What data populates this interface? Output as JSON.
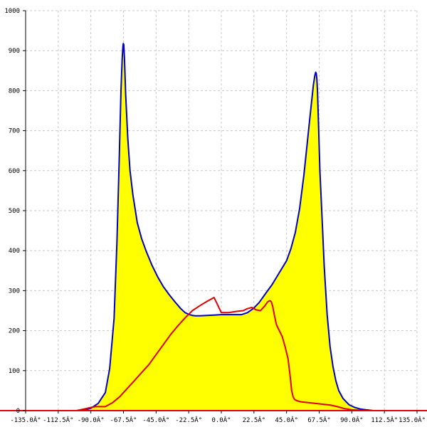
{
  "chart_data": {
    "type": "area",
    "title": "",
    "xlabel": "",
    "ylabel": "",
    "xlim": [
      -135,
      135
    ],
    "ylim": [
      0,
      1000
    ],
    "x_ticks": [
      -135,
      -112.5,
      -90,
      -67.5,
      -45,
      -22.5,
      0,
      22.5,
      45,
      67.5,
      90,
      112.5,
      135
    ],
    "x_tick_labels": [
      "-135.0Â°",
      "-112.5Â°",
      "-90.0Â°",
      "-67.5Â°",
      "-45.0Â°",
      "-22.5Â°",
      "0.0Â°",
      "22.5Â°",
      "45.0Â°",
      "67.5Â°",
      "90.0Â°",
      "112.5Â°",
      "135.0Â°"
    ],
    "y_ticks": [
      0,
      100,
      200,
      300,
      400,
      500,
      600,
      700,
      800,
      900,
      1000
    ],
    "y_tick_labels": [
      "0",
      "100",
      "200",
      "300",
      "400",
      "500",
      "600",
      "700",
      "800",
      "900",
      "1000"
    ],
    "grid": true,
    "colors": {
      "fill": "#ffff00",
      "series_1": "#0000c8",
      "series_2": "#e00000",
      "grid": "#c8c8c8",
      "axis": "#000000",
      "baseline": "#e00000"
    },
    "series": [
      {
        "values_x": [
          -96,
          -90,
          -85,
          -80,
          -77,
          -74,
          -72,
          -70.5,
          -69.2,
          -68.4,
          -67.9,
          -67.6,
          -67.3,
          -66.8,
          -66,
          -64.5,
          -63,
          -61,
          -58,
          -55,
          -52,
          -48,
          -44,
          -40,
          -36,
          -32,
          -28,
          -25,
          -22,
          -20,
          -18,
          -15,
          -10,
          -5,
          0,
          5,
          10,
          14,
          18,
          22,
          26,
          30,
          35,
          40,
          45,
          48,
          51,
          54,
          57,
          59,
          61,
          62.5,
          63.5,
          64.5,
          65.1,
          65.5,
          65.9,
          66.3,
          67,
          68,
          69.5,
          71,
          73,
          75,
          77,
          79,
          81,
          84,
          88,
          92,
          96,
          100,
          105,
          135
        ],
        "values_y": [
          0,
          6,
          18,
          45,
          105,
          230,
          420,
          620,
          800,
          880,
          910,
          918,
          915,
          880,
          790,
          680,
          600,
          540,
          470,
          430,
          400,
          365,
          335,
          310,
          290,
          272,
          255,
          245,
          240,
          238,
          237,
          237,
          238,
          239,
          240,
          240,
          240,
          240,
          245,
          255,
          270,
          290,
          315,
          345,
          375,
          405,
          445,
          505,
          590,
          660,
          730,
          780,
          815,
          838,
          846,
          843,
          830,
          800,
          720,
          600,
          480,
          360,
          240,
          160,
          110,
          75,
          50,
          30,
          15,
          8,
          4,
          2,
          0,
          0
        ]
      },
      {
        "values_x": [
          -135,
          -100,
          -95,
          -90,
          -87,
          -84,
          -80,
          -75,
          -70,
          -65,
          -60,
          -55,
          -50,
          -45,
          -40,
          -35,
          -30,
          -25,
          -20,
          -15,
          -10,
          -5,
          0,
          5,
          10,
          15,
          18,
          21,
          24,
          27,
          30,
          32,
          33.5,
          34.5,
          35.5,
          36.5,
          38,
          40,
          42,
          44,
          46,
          47.5,
          48.5,
          49.5,
          50.5,
          52,
          55,
          60,
          65,
          70,
          75,
          80,
          85,
          90,
          95,
          100,
          135
        ],
        "values_y": [
          0,
          0,
          4,
          8,
          10,
          10,
          10,
          20,
          35,
          55,
          75,
          95,
          115,
          140,
          165,
          190,
          212,
          232,
          250,
          262,
          273,
          283,
          245,
          245,
          248,
          250,
          255,
          258,
          252,
          250,
          262,
          272,
          275,
          272,
          260,
          240,
          215,
          200,
          185,
          160,
          130,
          85,
          50,
          35,
          28,
          25,
          22,
          20,
          18,
          16,
          14,
          10,
          5,
          2,
          1,
          0,
          0
        ]
      }
    ]
  }
}
